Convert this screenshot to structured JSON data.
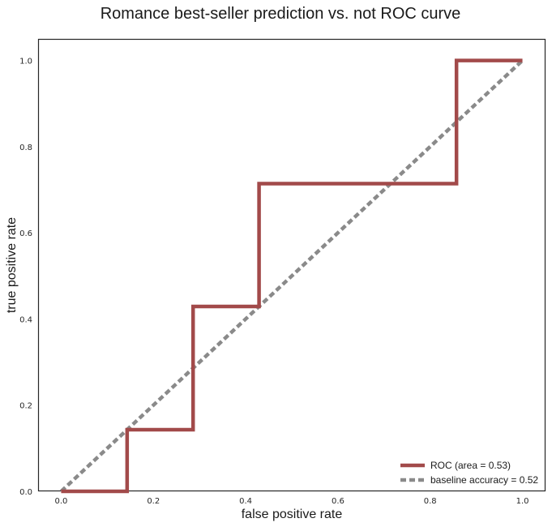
{
  "chart_data": {
    "type": "line",
    "title": "Romance best-seller prediction vs. not ROC curve",
    "xlabel": "false positive rate",
    "ylabel": "true positive rate",
    "xlim": [
      -0.05,
      1.05
    ],
    "ylim": [
      0.0,
      1.05
    ],
    "xticks": [
      "0.0",
      "0.2",
      "0.4",
      "0.6",
      "0.8",
      "1.0"
    ],
    "yticks": [
      "0.0",
      "0.2",
      "0.4",
      "0.6",
      "0.8",
      "1.0"
    ],
    "grid": false,
    "legend_position": "lower-right",
    "series": [
      {
        "name": "ROC (area = 0.53)",
        "color": "#a24a4a",
        "style": "solid",
        "x": [
          0.0,
          0.143,
          0.143,
          0.286,
          0.286,
          0.429,
          0.429,
          0.857,
          0.857,
          1.0
        ],
        "y": [
          0.0,
          0.0,
          0.143,
          0.143,
          0.429,
          0.429,
          0.714,
          0.714,
          1.0,
          1.0
        ]
      },
      {
        "name": "baseline accuracy = 0.52",
        "color": "#8a8a8a",
        "style": "dashed",
        "x": [
          0.0,
          1.0
        ],
        "y": [
          0.0,
          1.0
        ]
      }
    ]
  }
}
